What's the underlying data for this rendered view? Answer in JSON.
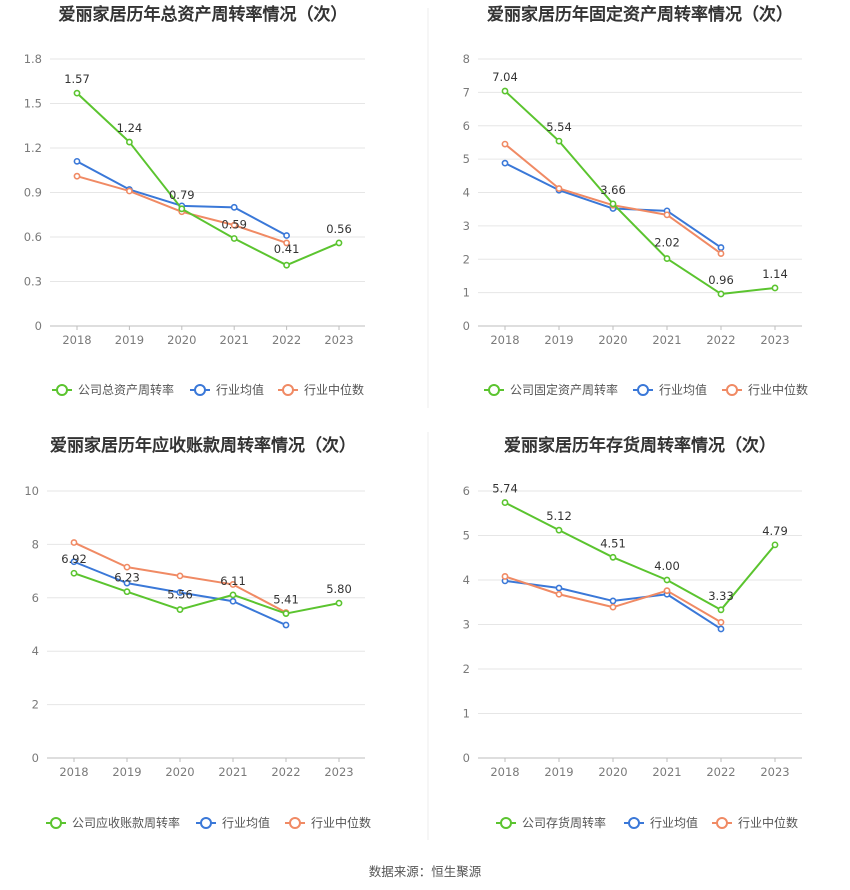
{
  "source": "数据来源：恒生聚源",
  "chart_data": [
    {
      "type": "line",
      "title": "爱丽家居历年总资产周转率情况（次）",
      "categories": [
        "2018",
        "2019",
        "2020",
        "2021",
        "2022",
        "2023"
      ],
      "ylim": [
        0,
        1.8
      ],
      "yticks": [
        "0",
        "0.3",
        "0.6",
        "0.9",
        "1.2",
        "1.5",
        "1.8"
      ],
      "series": [
        {
          "name": "公司总资产周转率",
          "color": "#5bc42f",
          "values": [
            1.57,
            1.24,
            0.79,
            0.59,
            0.41,
            0.56
          ],
          "labels": [
            "1.57",
            "1.24",
            "0.79",
            "0.59",
            "0.41",
            "0.56"
          ]
        },
        {
          "name": "行业均值",
          "color": "#3a78d8",
          "values": [
            1.11,
            0.92,
            0.81,
            0.8,
            0.61,
            null
          ]
        },
        {
          "name": "行业中位数",
          "color": "#f08a64",
          "values": [
            1.01,
            0.91,
            0.77,
            0.68,
            0.56,
            null
          ]
        }
      ],
      "legend": "bottom"
    },
    {
      "type": "line",
      "title": "爱丽家居历年固定资产周转率情况（次）",
      "categories": [
        "2018",
        "2019",
        "2020",
        "2021",
        "2022",
        "2023"
      ],
      "ylim": [
        0,
        8
      ],
      "yticks": [
        "0",
        "1",
        "2",
        "3",
        "4",
        "5",
        "6",
        "7",
        "8"
      ],
      "series": [
        {
          "name": "公司固定资产周转率",
          "color": "#5bc42f",
          "values": [
            7.04,
            5.54,
            3.66,
            2.02,
            0.96,
            1.14
          ],
          "labels": [
            "7.04",
            "5.54",
            "3.66",
            "2.02",
            "0.96",
            "1.14"
          ]
        },
        {
          "name": "行业均值",
          "color": "#3a78d8",
          "values": [
            4.88,
            4.07,
            3.52,
            3.45,
            2.35,
            null
          ]
        },
        {
          "name": "行业中位数",
          "color": "#f08a64",
          "values": [
            5.45,
            4.12,
            3.62,
            3.33,
            2.17,
            null
          ]
        }
      ],
      "legend": "bottom"
    },
    {
      "type": "line",
      "title": "爱丽家居历年应收账款周转率情况（次）",
      "categories": [
        "2018",
        "2019",
        "2020",
        "2021",
        "2022",
        "2023"
      ],
      "ylim": [
        0,
        10
      ],
      "yticks": [
        "0",
        "2",
        "4",
        "6",
        "8",
        "10"
      ],
      "series": [
        {
          "name": "公司应收账款周转率",
          "color": "#5bc42f",
          "values": [
            6.92,
            6.23,
            5.56,
            6.11,
            5.41,
            5.8
          ],
          "labels": [
            "6.92",
            "6.23",
            "5.56",
            "6.11",
            "5.41",
            "5.80"
          ]
        },
        {
          "name": "行业均值",
          "color": "#3a78d8",
          "values": [
            7.35,
            6.55,
            6.2,
            5.87,
            4.98,
            null
          ]
        },
        {
          "name": "行业中位数",
          "color": "#f08a64",
          "values": [
            8.07,
            7.15,
            6.82,
            6.5,
            5.45,
            null
          ]
        }
      ],
      "legend": "bottom"
    },
    {
      "type": "line",
      "title": "爱丽家居历年存货周转率情况（次）",
      "categories": [
        "2018",
        "2019",
        "2020",
        "2021",
        "2022",
        "2023"
      ],
      "ylim": [
        0,
        6
      ],
      "yticks": [
        "0",
        "1",
        "2",
        "3",
        "4",
        "5",
        "6"
      ],
      "series": [
        {
          "name": "公司存货周转率",
          "color": "#5bc42f",
          "values": [
            5.74,
            5.12,
            4.51,
            4.0,
            3.33,
            4.79
          ],
          "labels": [
            "5.74",
            "5.12",
            "4.51",
            "4.00",
            "3.33",
            "4.79"
          ]
        },
        {
          "name": "行业均值",
          "color": "#3a78d8",
          "values": [
            3.98,
            3.82,
            3.53,
            3.68,
            2.9,
            null
          ]
        },
        {
          "name": "行业中位数",
          "color": "#f08a64",
          "values": [
            4.08,
            3.68,
            3.39,
            3.76,
            3.05,
            null
          ]
        }
      ],
      "legend": "bottom"
    }
  ]
}
